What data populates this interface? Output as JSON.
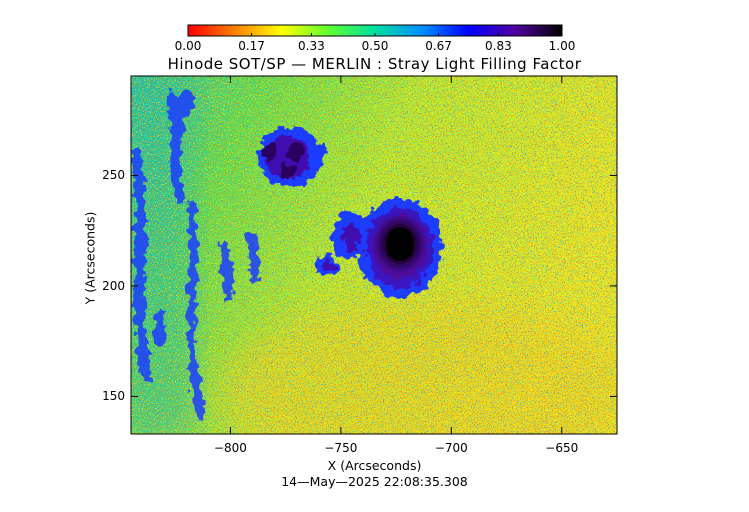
{
  "title": "Hinode SOT/SP — MERLIN : Stray Light Filling Factor",
  "timestamp": "14—May—2025 22:08:35.308",
  "axes": {
    "x_label": "X (Arcseconds)",
    "y_label": "Y (Arcseconds)",
    "x_range": [
      -845,
      -625
    ],
    "y_range": [
      133,
      295
    ],
    "x_ticks": [
      "−800",
      "−750",
      "−700",
      "−650"
    ],
    "x_tick_values": [
      -800,
      -750,
      -700,
      -650
    ],
    "y_ticks": [
      "150",
      "200",
      "250"
    ],
    "y_tick_values": [
      150,
      200,
      250
    ]
  },
  "colorbar": {
    "ticks": [
      "0.00",
      "0.17",
      "0.33",
      "0.50",
      "0.67",
      "0.83",
      "1.00"
    ],
    "tick_values": [
      0,
      0.17,
      0.33,
      0.5,
      0.67,
      0.83,
      1.0
    ],
    "range": [
      0,
      1
    ],
    "colormap": [
      "#ff0000",
      "#ff8000",
      "#ffff00",
      "#60ff30",
      "#00e0a0",
      "#0090ff",
      "#0000ff",
      "#5000a0",
      "#000000"
    ]
  },
  "map_features": {
    "colors": {
      "red": "#ff2000",
      "orange": "#ff9000",
      "yellow": "#ffe000",
      "green": "#40e040",
      "teal": "#00c0b0",
      "blue": "#1040ff",
      "purple": "#5010a0",
      "black": "#000000"
    }
  }
}
